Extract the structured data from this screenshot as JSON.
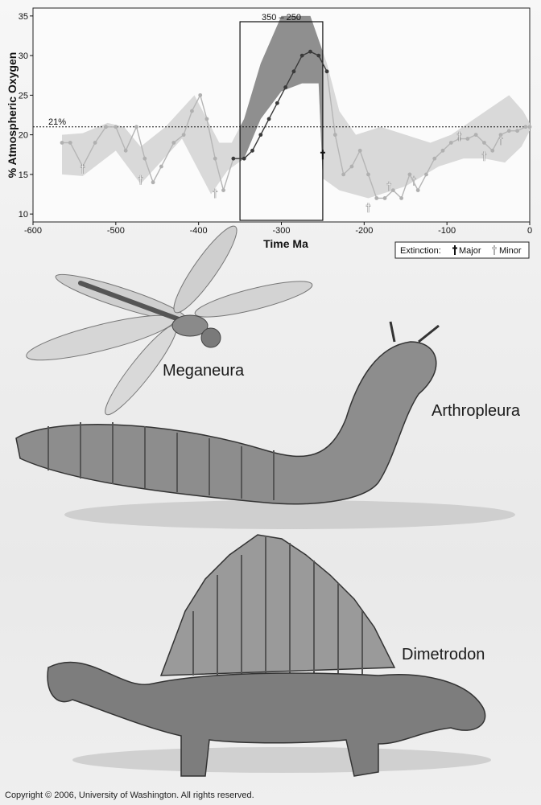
{
  "chart_data": {
    "type": "line",
    "xlabel": "Time Ma",
    "ylabel": "% Atmospheric Oxygen",
    "xlim": [
      -600,
      0
    ],
    "ylim": [
      9,
      36
    ],
    "xticks": [
      -600,
      -500,
      -400,
      -300,
      -200,
      -100,
      0
    ],
    "yticks": [
      10,
      15,
      20,
      25,
      30,
      35
    ],
    "grid": false,
    "reference_line": {
      "y": 21,
      "label": "21%"
    },
    "highlight": {
      "x_range": [
        -350,
        -250
      ],
      "label": "350 – 250"
    },
    "series": [
      {
        "values_x": [
          -565,
          -555,
          -540,
          -525,
          -512,
          -500,
          -488,
          -475,
          -465,
          -455,
          -445,
          -430,
          -418,
          -408,
          -398,
          -390,
          -380,
          -370,
          -358,
          -345,
          -335,
          -325,
          -315,
          -305,
          -295,
          -285,
          -275,
          -265,
          -255,
          -245,
          -235,
          -225,
          -215,
          -205,
          -195,
          -185,
          -175,
          -165,
          -155,
          -145,
          -135,
          -125,
          -115,
          -105,
          -95,
          -85,
          -75,
          -65,
          -55,
          -45,
          -35,
          -25,
          -15,
          -5,
          0
        ],
        "values_y": [
          19,
          19,
          16,
          19,
          21,
          21,
          18,
          21,
          17,
          14,
          16,
          19,
          20,
          23,
          25,
          22,
          17,
          13,
          17,
          17,
          18,
          20,
          22,
          24,
          26,
          28,
          30,
          30.5,
          30,
          28,
          20,
          15,
          16,
          18,
          15,
          12,
          12,
          13,
          12,
          15,
          13,
          15,
          17,
          18,
          19,
          19.5,
          19.5,
          20,
          19,
          18,
          20,
          20.5,
          20.5,
          21,
          21
        ]
      }
    ],
    "band_lower": [
      [
        -565,
        15
      ],
      [
        -540,
        14.8
      ],
      [
        -500,
        18
      ],
      [
        -470,
        13.8
      ],
      [
        -420,
        19.5
      ],
      [
        -385,
        12.5
      ],
      [
        -365,
        15.5
      ],
      [
        -345,
        17
      ],
      [
        -325,
        22
      ],
      [
        -300,
        25.5
      ],
      [
        -275,
        26.5
      ],
      [
        -255,
        26.5
      ],
      [
        -250,
        14.5
      ],
      [
        -230,
        13
      ],
      [
        -195,
        12
      ],
      [
        -150,
        13.5
      ],
      [
        -110,
        16
      ],
      [
        -80,
        17
      ],
      [
        -55,
        17
      ],
      [
        -30,
        16.5
      ],
      [
        -10,
        18.5
      ],
      [
        0,
        20.5
      ]
    ],
    "band_upper": [
      [
        -565,
        20
      ],
      [
        -540,
        20.2
      ],
      [
        -510,
        21.5
      ],
      [
        -490,
        21
      ],
      [
        -470,
        18.5
      ],
      [
        -440,
        21
      ],
      [
        -405,
        25
      ],
      [
        -390,
        22
      ],
      [
        -375,
        19
      ],
      [
        -360,
        19
      ],
      [
        -345,
        22
      ],
      [
        -325,
        29
      ],
      [
        -300,
        35
      ],
      [
        -265,
        35
      ],
      [
        -245,
        29
      ],
      [
        -230,
        23
      ],
      [
        -210,
        20
      ],
      [
        -180,
        21
      ],
      [
        -150,
        20
      ],
      [
        -120,
        19
      ],
      [
        -95,
        20
      ],
      [
        -60,
        22.5
      ],
      [
        -25,
        25
      ],
      [
        -8,
        23
      ],
      [
        0,
        21.5
      ]
    ],
    "extinction_major": [
      [
        -250,
        17.5
      ]
    ],
    "extinction_minor": [
      [
        -540,
        15.7
      ],
      [
        -470,
        14.3
      ],
      [
        -380,
        12.6
      ],
      [
        -195,
        10.8
      ],
      [
        -170,
        13.5
      ],
      [
        -140,
        14.2
      ],
      [
        -85,
        19.8
      ],
      [
        -55,
        17.3
      ],
      [
        -35,
        19.3
      ]
    ],
    "legend": {
      "title": "Extinction:",
      "major_label": "Major",
      "minor_label": "Minor",
      "placement": "bottom-right"
    }
  },
  "labels": {
    "meganeura": "Meganeura",
    "arthropleura": "Arthropleura",
    "dimetrodon": "Dimetrodon",
    "copyright": "Copyright © 2006, University of Washington. All rights reserved."
  }
}
